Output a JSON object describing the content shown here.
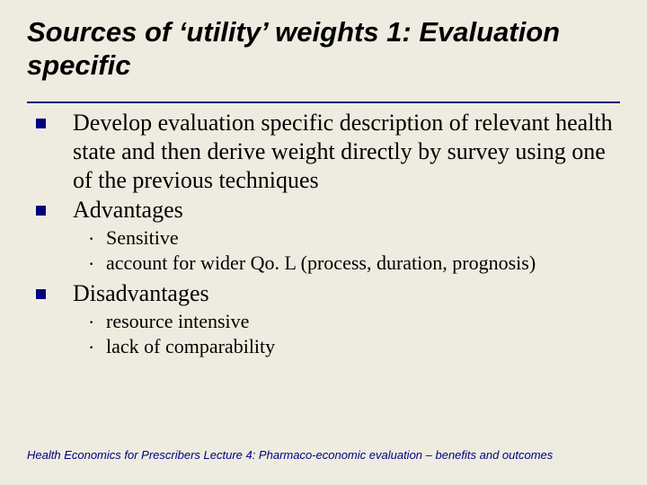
{
  "colors": {
    "background": "#eeece0",
    "bullet_square": "#000080",
    "title_rule": "#000080",
    "footer_text": "#000080",
    "body_text": "#000000"
  },
  "typography": {
    "title_font": "Arial",
    "title_size_pt": 31,
    "title_weight": "bold",
    "title_style": "italic",
    "body_font": "Times New Roman",
    "level1_size_pt": 26,
    "level2_size_pt": 22,
    "footer_font": "Arial",
    "footer_size_pt": 13,
    "footer_style": "italic"
  },
  "title": "Sources of ‘utility’ weights 1: Evaluation specific",
  "items": {
    "p0": "Develop evaluation specific description of relevant health state and then derive weight directly by survey using one of the previous techniques",
    "p1": "Advantages",
    "p1_subs": {
      "s0": "Sensitive",
      "s1": "account for wider Qo. L (process, duration, prognosis)"
    },
    "p2": "Disadvantages",
    "p2_subs": {
      "s0": "resource intensive",
      "s1": "lack of comparability"
    }
  },
  "footer": "Health Economics for Prescribers Lecture 4: Pharmaco-economic evaluation – benefits and outcomes"
}
